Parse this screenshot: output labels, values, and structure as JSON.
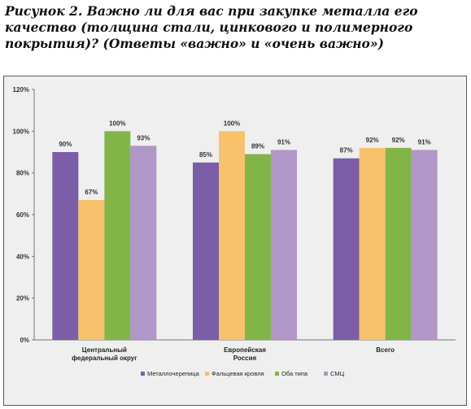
{
  "caption": "Рисунок 2. Важно ли для вас при закупке металла его качество (толщина стали, цинкового и полимерного покрытия)? (Ответы «важно» и «очень важно»)",
  "chart_data": {
    "type": "bar",
    "categories": [
      [
        "Центральный",
        "федеральный округ"
      ],
      [
        "Европейская",
        "Россия"
      ],
      [
        "Всего"
      ]
    ],
    "series": [
      {
        "name": "Металлочерепица",
        "color": "#7b5ea7",
        "values": [
          90,
          85,
          87
        ],
        "labels": [
          "90%",
          "85%",
          "87%"
        ]
      },
      {
        "name": "Фальцевая кровля",
        "color": "#f7c26b",
        "values": [
          67,
          100,
          92
        ],
        "labels": [
          "67%",
          "100%",
          "92%"
        ]
      },
      {
        "name": "Оба типа",
        "color": "#82b548",
        "values": [
          100,
          89,
          92
        ],
        "labels": [
          "100%",
          "89%",
          "92%"
        ]
      },
      {
        "name": "СМЦ",
        "color": "#b196c8",
        "values": [
          93,
          91,
          91
        ],
        "labels": [
          "93%",
          "91%",
          "91%"
        ]
      }
    ],
    "yticks": [
      "0%",
      "20%",
      "40%",
      "60%",
      "80%",
      "100%",
      "120%"
    ],
    "ylim": [
      0,
      120
    ],
    "grid": false,
    "legend_position": "bottom"
  }
}
